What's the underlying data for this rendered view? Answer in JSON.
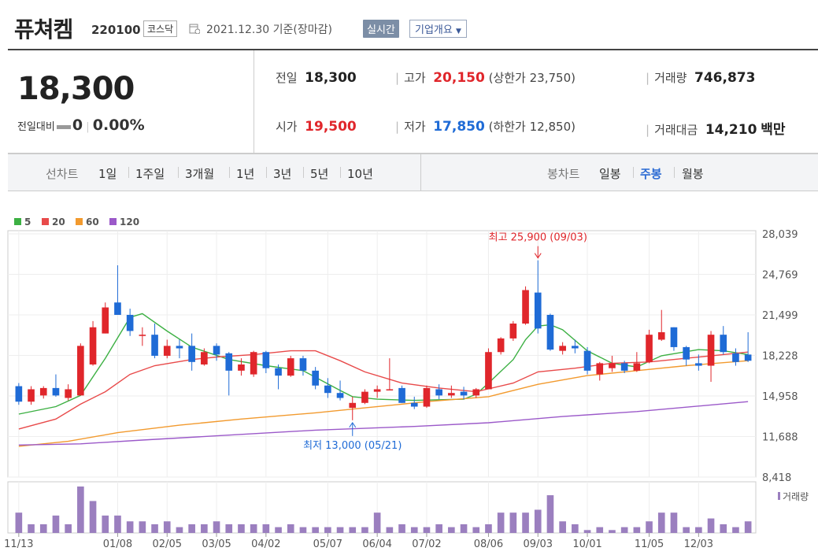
{
  "header": {
    "stock_name": "퓨쳐켐",
    "code": "220100",
    "market": "코스닥",
    "basis_date": "2021.12.30 기준(장마감)",
    "realtime_label": "실시간",
    "company_overview_label": "기업개요"
  },
  "price": {
    "current": "18,300",
    "change_label": "전일대비",
    "change_value": "0",
    "change_pct": "0.00%"
  },
  "stats": {
    "prev_label": "전일",
    "prev": "18,300",
    "high_label": "고가",
    "high": "20,150",
    "upper_limit_label": "(상한가 23,750)",
    "volume_label": "거래량",
    "volume": "746,873",
    "open_label": "시가",
    "open": "19,500",
    "low_label": "저가",
    "low": "17,850",
    "lower_limit_label": "(하한가 12,850)",
    "amount_label": "거래대금",
    "amount": "14,210",
    "amount_unit": "백만"
  },
  "tabs": {
    "line_chart_label": "선차트",
    "line_periods": [
      "1일",
      "1주일",
      "3개월",
      "1년",
      "3년",
      "5년",
      "10년"
    ],
    "candle_chart_label": "봉차트",
    "candle_periods": [
      "일봉",
      "주봉",
      "월봉"
    ],
    "active_candle": "주봉"
  },
  "chart_data": {
    "type": "candlestick",
    "legend": [
      {
        "name": "5",
        "color": "#3cb043"
      },
      {
        "name": "20",
        "color": "#e84a4a"
      },
      {
        "name": "60",
        "color": "#f29a2e"
      },
      {
        "name": "120",
        "color": "#9b59c9"
      }
    ],
    "yticks": [
      "28,039",
      "24,769",
      "21,499",
      "18,228",
      "14,958",
      "11,688",
      "8,418"
    ],
    "ylim": [
      8418,
      28039
    ],
    "xticks": [
      {
        "label": "11/13",
        "index": 0
      },
      {
        "label": "01/08",
        "index": 8
      },
      {
        "label": "02/05",
        "index": 12
      },
      {
        "label": "03/05",
        "index": 16
      },
      {
        "label": "04/02",
        "index": 20
      },
      {
        "label": "05/07",
        "index": 25
      },
      {
        "label": "06/04",
        "index": 29
      },
      {
        "label": "07/02",
        "index": 33
      },
      {
        "label": "08/06",
        "index": 38
      },
      {
        "label": "09/03",
        "index": 42
      },
      {
        "label": "10/01",
        "index": 46
      },
      {
        "label": "11/05",
        "index": 51
      },
      {
        "label": "12/03",
        "index": 55
      }
    ],
    "high_annotation": "최고 25,900 (09/03)",
    "high_index": 42,
    "high_value": 25900,
    "low_annotation": "최저 13,000 (05/21)",
    "low_index": 27,
    "low_value": 13000,
    "up_color": "#e0262b",
    "down_color": "#1f6bd6",
    "ohlc": [
      [
        15750,
        16000,
        14250,
        14500
      ],
      [
        14500,
        15750,
        14250,
        15500
      ],
      [
        15000,
        15750,
        14750,
        15600
      ],
      [
        15600,
        16700,
        14900,
        15000
      ],
      [
        14800,
        15900,
        14600,
        15500
      ],
      [
        15000,
        19200,
        15000,
        19000
      ],
      [
        17500,
        21000,
        17400,
        20500
      ],
      [
        20000,
        22500,
        20000,
        22100
      ],
      [
        22500,
        25500,
        21500,
        21500
      ],
      [
        21500,
        22000,
        19800,
        20200
      ],
      [
        19800,
        20500,
        19000,
        19900
      ],
      [
        19900,
        20800,
        18000,
        18200
      ],
      [
        18200,
        19500,
        18000,
        19000
      ],
      [
        19000,
        19500,
        18000,
        18800
      ],
      [
        19000,
        20000,
        17000,
        17700
      ],
      [
        17500,
        18800,
        17400,
        18500
      ],
      [
        19000,
        19200,
        17800,
        18300
      ],
      [
        18400,
        18500,
        15000,
        17000
      ],
      [
        17000,
        18000,
        16600,
        17500
      ],
      [
        16700,
        18600,
        16500,
        18500
      ],
      [
        18500,
        18600,
        16800,
        17200
      ],
      [
        17200,
        17500,
        15500,
        16600
      ],
      [
        16600,
        18200,
        16500,
        18000
      ],
      [
        18000,
        18200,
        16600,
        17000
      ],
      [
        17000,
        17300,
        15500,
        15800
      ],
      [
        15800,
        16400,
        14800,
        15200
      ],
      [
        15200,
        16200,
        14600,
        14800
      ],
      [
        14000,
        14900,
        13000,
        14400
      ],
      [
        14400,
        15500,
        14300,
        15300
      ],
      [
        15300,
        15800,
        14800,
        15500
      ],
      [
        15500,
        18000,
        15500,
        15500
      ],
      [
        15600,
        15800,
        14400,
        14400
      ],
      [
        14400,
        14900,
        13900,
        14100
      ],
      [
        14100,
        15800,
        14000,
        15600
      ],
      [
        15500,
        15900,
        14700,
        15000
      ],
      [
        15000,
        15800,
        14800,
        15200
      ],
      [
        15300,
        15700,
        14700,
        15000
      ],
      [
        15000,
        15600,
        14800,
        15500
      ],
      [
        15500,
        18800,
        15500,
        18500
      ],
      [
        18500,
        19700,
        18300,
        19600
      ],
      [
        19600,
        21000,
        19400,
        20800
      ],
      [
        20800,
        23800,
        20700,
        23500
      ],
      [
        23300,
        25900,
        20000,
        20400
      ],
      [
        21500,
        21600,
        18600,
        18700
      ],
      [
        18600,
        19300,
        18300,
        19000
      ],
      [
        19000,
        19500,
        18400,
        18800
      ],
      [
        18600,
        18900,
        16700,
        17000
      ],
      [
        16700,
        17700,
        16200,
        17600
      ],
      [
        17200,
        18200,
        16900,
        17600
      ],
      [
        17600,
        17800,
        16800,
        17000
      ],
      [
        17000,
        18500,
        16900,
        17600
      ],
      [
        17700,
        20300,
        17600,
        19900
      ],
      [
        19500,
        21900,
        19400,
        20100
      ],
      [
        20500,
        20500,
        18600,
        18900
      ],
      [
        18900,
        19000,
        17400,
        17900
      ],
      [
        17600,
        18300,
        17000,
        17400
      ],
      [
        17400,
        20200,
        16100,
        19900
      ],
      [
        19900,
        20600,
        18300,
        18500
      ],
      [
        18400,
        18800,
        17400,
        17700
      ],
      [
        18300,
        20100,
        17700,
        17800
      ]
    ],
    "ma": {
      "5": [
        [
          0,
          13500
        ],
        [
          3,
          14100
        ],
        [
          5,
          15000
        ],
        [
          7,
          18000
        ],
        [
          9,
          21300
        ],
        [
          10,
          21600
        ],
        [
          12,
          20200
        ],
        [
          14,
          18900
        ],
        [
          17,
          17900
        ],
        [
          20,
          17400
        ],
        [
          23,
          17000
        ],
        [
          26,
          15400
        ],
        [
          27,
          14900
        ],
        [
          29,
          14700
        ],
        [
          32,
          14600
        ],
        [
          36,
          14700
        ],
        [
          37,
          15100
        ],
        [
          38,
          16000
        ],
        [
          40,
          17900
        ],
        [
          41,
          19500
        ],
        [
          42,
          20600
        ],
        [
          43,
          20700
        ],
        [
          44,
          20300
        ],
        [
          46,
          18600
        ],
        [
          48,
          17600
        ],
        [
          50,
          17300
        ],
        [
          52,
          18200
        ],
        [
          55,
          18700
        ],
        [
          57,
          18600
        ],
        [
          59,
          18300
        ]
      ],
      "20": [
        [
          0,
          12300
        ],
        [
          3,
          13100
        ],
        [
          5,
          14300
        ],
        [
          7,
          15300
        ],
        [
          9,
          16700
        ],
        [
          11,
          17400
        ],
        [
          14,
          17900
        ],
        [
          16,
          18100
        ],
        [
          19,
          18300
        ],
        [
          22,
          18600
        ],
        [
          24,
          18600
        ],
        [
          26,
          17800
        ],
        [
          28,
          16900
        ],
        [
          31,
          16000
        ],
        [
          34,
          15600
        ],
        [
          37,
          15300
        ],
        [
          40,
          16000
        ],
        [
          42,
          16900
        ],
        [
          45,
          17200
        ],
        [
          48,
          17600
        ],
        [
          51,
          17700
        ],
        [
          54,
          18000
        ],
        [
          57,
          18300
        ],
        [
          59,
          18500
        ]
      ],
      "60": [
        [
          0,
          10900
        ],
        [
          4,
          11300
        ],
        [
          8,
          12000
        ],
        [
          13,
          12600
        ],
        [
          18,
          13100
        ],
        [
          24,
          13600
        ],
        [
          28,
          14000
        ],
        [
          33,
          14500
        ],
        [
          38,
          14900
        ],
        [
          42,
          15900
        ],
        [
          46,
          16600
        ],
        [
          50,
          17000
        ],
        [
          54,
          17400
        ],
        [
          59,
          17800
        ]
      ],
      "120": [
        [
          0,
          11000
        ],
        [
          5,
          11100
        ],
        [
          10,
          11400
        ],
        [
          17,
          11800
        ],
        [
          24,
          12200
        ],
        [
          32,
          12500
        ],
        [
          38,
          12800
        ],
        [
          44,
          13300
        ],
        [
          50,
          13700
        ],
        [
          59,
          14500
        ]
      ]
    },
    "volume": {
      "legend": "거래량",
      "values": [
        7,
        3,
        3,
        6,
        3,
        16,
        11,
        6,
        6,
        4,
        4,
        3,
        4,
        2,
        3,
        3,
        4,
        3,
        3,
        3,
        3,
        2,
        3,
        2,
        2,
        2,
        2,
        2,
        2,
        7,
        2,
        3,
        2,
        2,
        3,
        2,
        3,
        2,
        3,
        7,
        7,
        7,
        8,
        13,
        4,
        3,
        1,
        2,
        1,
        2,
        2,
        4,
        7,
        7,
        2,
        2,
        5,
        3,
        2,
        4
      ],
      "color": "#9b7fbf"
    }
  }
}
